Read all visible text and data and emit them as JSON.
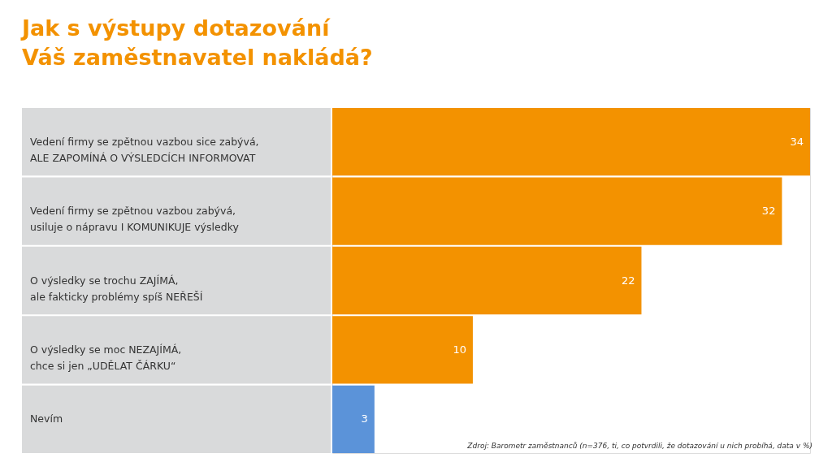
{
  "chart_data": {
    "type": "bar",
    "orientation": "horizontal",
    "title": "Jak s výstupy dotazování\nVáš zaměstnavatel nakládá?",
    "categories": [
      "Vedení firmy se zpětnou vazbou sice zabývá,\nALE ZAPOMÍNÁ O VÝSLEDCÍCH INFORMOVAT",
      "Vedení firmy se zpětnou vazbou zabývá,\nusiluje o nápravu I KOMUNIKUJE výsledky",
      "O výsledky se trochu ZAJÍMÁ,\nale fakticky problémy spíš NEŘEŠÍ",
      "O výsledky se moc NEZAJÍMÁ,\nchce si jen „UDĚLAT ČÁRKU“",
      "Nevím"
    ],
    "values": [
      34,
      32,
      22,
      10,
      3
    ],
    "colors": [
      "#f39200",
      "#f39200",
      "#f39200",
      "#f39200",
      "#5b93d9"
    ],
    "data_labels": true,
    "annotations": [
      "Zdroj: Barometr zaměstnanců (n=376, ti, co potvrdili, že dotazování u nich probíhá, data v %)"
    ]
  }
}
